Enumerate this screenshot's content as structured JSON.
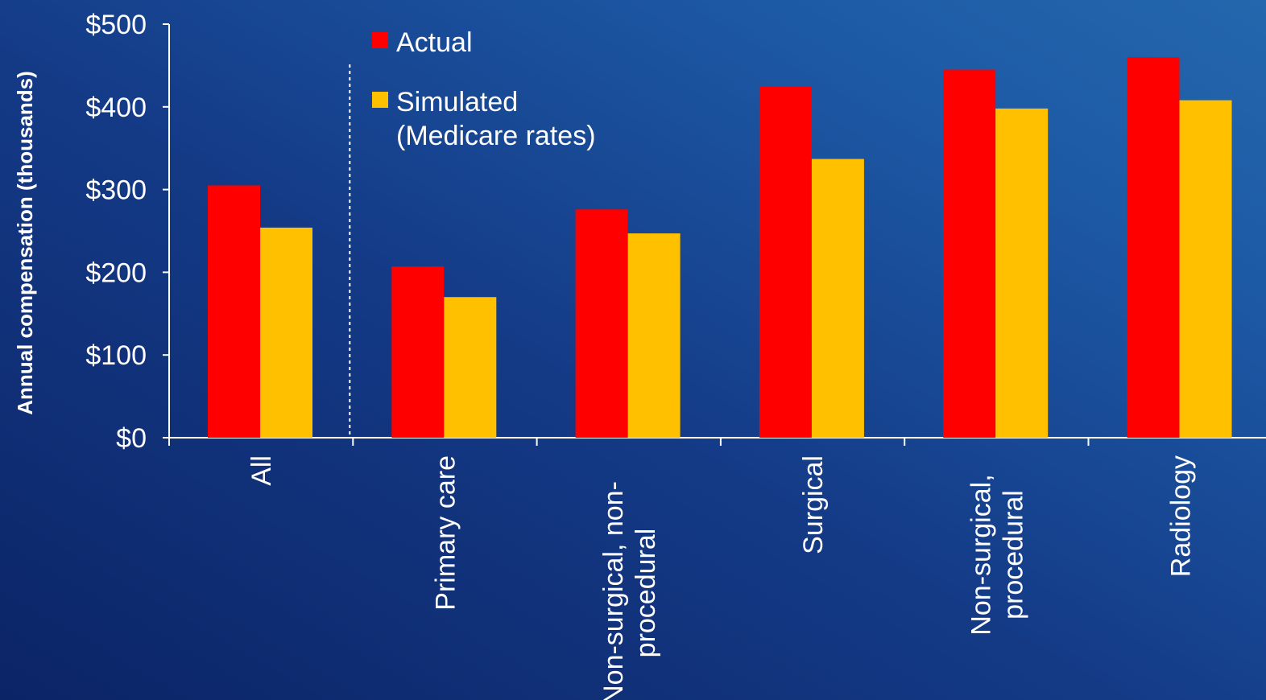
{
  "chart_data": {
    "type": "bar",
    "ylabel": "Annual compensation (thousands)",
    "ylim": [
      0,
      500
    ],
    "yticks": [
      {
        "value": 0,
        "label": "$0"
      },
      {
        "value": 100,
        "label": "$100"
      },
      {
        "value": 200,
        "label": "$200"
      },
      {
        "value": 300,
        "label": "$300"
      },
      {
        "value": 400,
        "label": "$400"
      },
      {
        "value": 500,
        "label": "$500"
      }
    ],
    "categories": [
      {
        "label": "All",
        "lines": [
          "All"
        ]
      },
      {
        "label": "Primary care",
        "lines": [
          "Primary care"
        ]
      },
      {
        "label": "Non-surgical, non-procedural",
        "lines": [
          "Non-surgical, non-",
          "procedural"
        ]
      },
      {
        "label": "Surgical",
        "lines": [
          "Surgical"
        ]
      },
      {
        "label": "Non-surgical, procedural",
        "lines": [
          "Non-surgical,",
          "procedural"
        ]
      },
      {
        "label": "Radiology",
        "lines": [
          "Radiology"
        ]
      }
    ],
    "series": [
      {
        "name": "Actual",
        "legend_lines": [
          "Actual"
        ],
        "color": "#ff0000",
        "values": [
          305,
          207,
          276,
          425,
          445,
          460
        ]
      },
      {
        "name": "Simulated (Medicare rates)",
        "legend_lines": [
          "Simulated",
          "(Medicare rates)"
        ],
        "color": "#ffc000",
        "values": [
          254,
          170,
          247,
          337,
          398,
          408
        ]
      }
    ],
    "separator_after_category": "All",
    "legend_position": "top-left",
    "grid": false,
    "axis_color": "#ffffff"
  }
}
